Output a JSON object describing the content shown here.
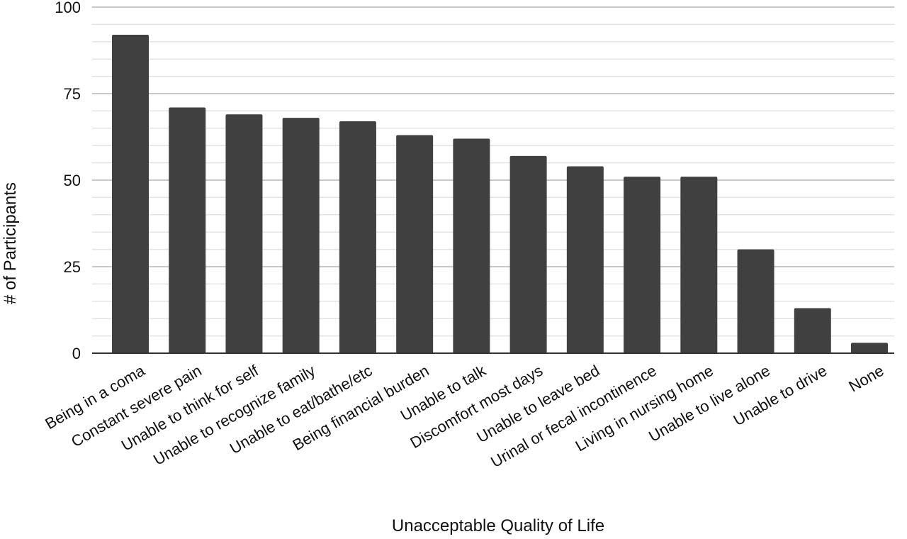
{
  "chart_data": {
    "type": "bar",
    "title": "",
    "xlabel": "Unacceptable Quality of Life",
    "ylabel": "# of Participants",
    "ylim": [
      0,
      100
    ],
    "yticks": [
      "0",
      "25",
      "50",
      "75",
      "100"
    ],
    "grid": true,
    "legend": "none",
    "bar_color": "#404040",
    "grid_color": "#d9d9d9",
    "categories": [
      "Being in a coma",
      "Constant severe pain",
      "Unable to think for self",
      "Unable to recognize family",
      "Unable to eat/bathe/etc",
      "Being financial burden",
      "Unable to talk",
      "Discomfort most days",
      "Unable to leave bed",
      "Urinal or fecal incontinence",
      "Living in nursing home",
      "Unable to live alone",
      "Unable to drive",
      "None"
    ],
    "values": [
      92,
      71,
      69,
      68,
      67,
      63,
      62,
      57,
      54,
      51,
      51,
      30,
      13,
      3
    ]
  }
}
